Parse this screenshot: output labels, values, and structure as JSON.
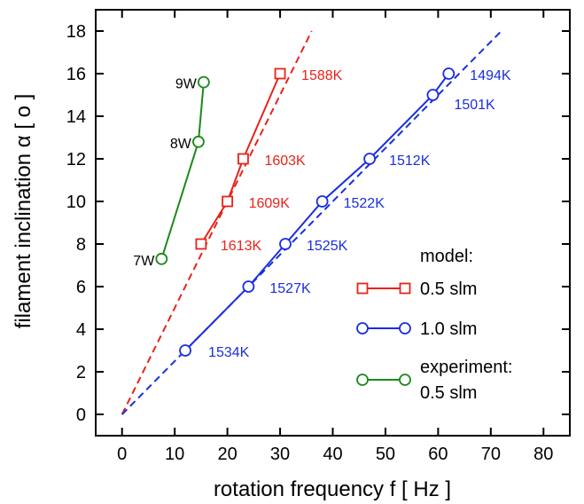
{
  "chart_data": {
    "type": "line",
    "xlabel": "rotation frequency  f [ Hz ]",
    "ylabel": "filament inclination  α [ o ]",
    "xlim": [
      -5,
      85
    ],
    "ylim": [
      -1,
      19
    ],
    "xticks": [
      0,
      10,
      20,
      30,
      40,
      50,
      60,
      70,
      80
    ],
    "yticks": [
      0,
      2,
      4,
      6,
      8,
      10,
      12,
      14,
      16,
      18
    ],
    "grid": false,
    "legend_position": "bottom-right",
    "legend": {
      "title": "model:",
      "entries": [
        "0.5 slm",
        "1.0 slm",
        "experiment:",
        "0.5 slm"
      ]
    },
    "series": [
      {
        "name": "0.5 slm",
        "group": "model",
        "color": "#e8231a",
        "marker": "square",
        "x": [
          15,
          20,
          23,
          30
        ],
        "y": [
          8,
          10,
          12,
          16
        ],
        "labels": [
          "1613K",
          "1609K",
          "1603K",
          "1588K"
        ]
      },
      {
        "name": "1.0 slm",
        "group": "model",
        "color": "#1a2ee0",
        "marker": "circle",
        "x": [
          12,
          24,
          31,
          38,
          47,
          59,
          62
        ],
        "y": [
          3,
          6,
          8,
          10,
          12,
          15,
          16
        ],
        "labels": [
          "1534K",
          "1527K",
          "1525K",
          "1522K",
          "1512K",
          "1501K",
          "1494K"
        ]
      },
      {
        "name": "0.5 slm",
        "group": "experiment",
        "color": "#1a8a1a",
        "marker": "circle",
        "x": [
          7.5,
          14.5,
          15.5
        ],
        "y": [
          7.3,
          12.8,
          15.6
        ],
        "labels": [
          "7W",
          "8W",
          "9W"
        ]
      }
    ],
    "fits": [
      {
        "color": "#e8231a",
        "style": "dashed",
        "x": [
          0,
          36
        ],
        "y": [
          0,
          18
        ]
      },
      {
        "color": "#1a2ee0",
        "style": "dashed",
        "x": [
          0,
          72
        ],
        "y": [
          0,
          18
        ]
      }
    ]
  }
}
